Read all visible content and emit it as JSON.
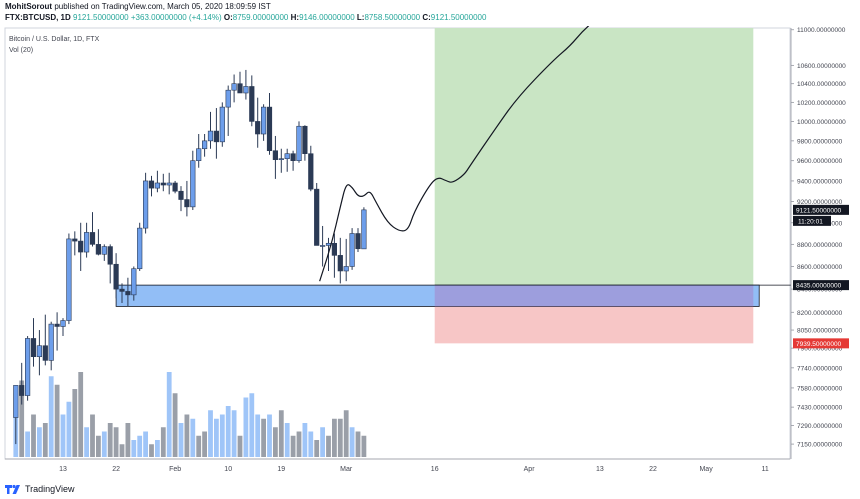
{
  "header": {
    "author": "MohitSorout",
    "published_text": "published on TradingView.com, March 05, 2020 18:09:59 IST",
    "symbol": "FTX:BTCUSD, 1D",
    "price": "9121.50000000",
    "change": "+363.00000000 (+4.14%)",
    "open_label": "O:",
    "open": "8759.00000000",
    "high_label": "H:",
    "high": "9146.00000000",
    "low_label": "L:",
    "low": "8758.50000000",
    "close_label": "C:",
    "close": "9121.50000000"
  },
  "legend": {
    "series_name": "Bitcoin / U.S. Dollar, 1D, FTX",
    "indicator": "Vol (20)"
  },
  "footer": {
    "brand": "TradingView"
  },
  "colors": {
    "up": "#6d9eeb",
    "down": "#2b3a55",
    "vol_up": "#9fc5f8",
    "vol_down": "#9a9fa8",
    "target_zone": "#c9e5c4",
    "stop_zone": "#f7c6c6",
    "support_zone": "#7fb3f5",
    "price_tag": "#131722",
    "stop_tag": "#e53935"
  },
  "chart_data": {
    "type": "candlestick",
    "symbol": "FTX:BTCUSD",
    "timeframe": "1D",
    "y_axis": {
      "scale": "log",
      "range": [
        7040,
        11020
      ],
      "tick_labels": [
        "11000.00000000",
        "10600.00000000",
        "10400.00000000",
        "10200.00000000",
        "10000.00000000",
        "9800.00000000",
        "9600.00000000",
        "9400.00000000",
        "9200.00000000",
        "9000.00000000",
        "8800.00000000",
        "8600.00000000",
        "8400.00000000",
        "8200.00000000",
        "8050.00000000",
        "7900.00000000",
        "7740.00000000",
        "7580.00000000",
        "7430.00000000",
        "7290.00000000",
        "7150.00000000"
      ],
      "tick_values": [
        11000,
        10600,
        10400,
        10200,
        10000,
        9800,
        9600,
        9400,
        9200,
        9000,
        8800,
        8600,
        8400,
        8200,
        8050,
        7900,
        7740,
        7580,
        7430,
        7290,
        7150
      ]
    },
    "x_axis": {
      "tick_labels": [
        "13",
        "22",
        "Feb",
        "10",
        "19",
        "Mar",
        "16",
        "Apr",
        "13",
        "22",
        "May",
        "11"
      ],
      "tick_days": [
        13,
        22,
        32,
        41,
        50,
        61,
        76,
        92,
        104,
        113,
        122,
        132
      ]
    },
    "candles": [
      {
        "d": 5,
        "o": 7350,
        "h": 7600,
        "l": 7150,
        "c": 7600
      },
      {
        "d": 6,
        "o": 7600,
        "h": 7780,
        "l": 7450,
        "c": 7520
      },
      {
        "d": 7,
        "o": 7520,
        "h": 8000,
        "l": 7480,
        "c": 7980
      },
      {
        "d": 8,
        "o": 7980,
        "h": 8150,
        "l": 7750,
        "c": 7830
      },
      {
        "d": 9,
        "o": 7830,
        "h": 8050,
        "l": 7680,
        "c": 7920
      },
      {
        "d": 10,
        "o": 7920,
        "h": 8180,
        "l": 7760,
        "c": 7800
      },
      {
        "d": 11,
        "o": 7800,
        "h": 8120,
        "l": 7720,
        "c": 8100
      },
      {
        "d": 12,
        "o": 8100,
        "h": 8200,
        "l": 7880,
        "c": 8080
      },
      {
        "d": 13,
        "o": 8080,
        "h": 8150,
        "l": 8000,
        "c": 8130
      },
      {
        "d": 14,
        "o": 8130,
        "h": 8900,
        "l": 8100,
        "c": 8850
      },
      {
        "d": 15,
        "o": 8850,
        "h": 8920,
        "l": 8700,
        "c": 8830
      },
      {
        "d": 16,
        "o": 8830,
        "h": 9000,
        "l": 8560,
        "c": 8730
      },
      {
        "d": 17,
        "o": 8730,
        "h": 9000,
        "l": 8680,
        "c": 8910
      },
      {
        "d": 18,
        "o": 8910,
        "h": 9100,
        "l": 8780,
        "c": 8800
      },
      {
        "d": 19,
        "o": 8800,
        "h": 8940,
        "l": 8700,
        "c": 8710
      },
      {
        "d": 20,
        "o": 8710,
        "h": 8800,
        "l": 8650,
        "c": 8780
      },
      {
        "d": 21,
        "o": 8780,
        "h": 8800,
        "l": 8450,
        "c": 8620
      },
      {
        "d": 22,
        "o": 8620,
        "h": 8720,
        "l": 8320,
        "c": 8400
      },
      {
        "d": 23,
        "o": 8400,
        "h": 8450,
        "l": 8280,
        "c": 8380
      },
      {
        "d": 24,
        "o": 8380,
        "h": 8500,
        "l": 8250,
        "c": 8350
      },
      {
        "d": 25,
        "o": 8350,
        "h": 8600,
        "l": 8300,
        "c": 8580
      },
      {
        "d": 26,
        "o": 8580,
        "h": 9000,
        "l": 8560,
        "c": 8950
      },
      {
        "d": 27,
        "o": 8950,
        "h": 9480,
        "l": 8900,
        "c": 9400
      },
      {
        "d": 28,
        "o": 9400,
        "h": 9450,
        "l": 9250,
        "c": 9330
      },
      {
        "d": 29,
        "o": 9330,
        "h": 9500,
        "l": 9290,
        "c": 9380
      },
      {
        "d": 30,
        "o": 9380,
        "h": 9470,
        "l": 9300,
        "c": 9360
      },
      {
        "d": 31,
        "o": 9360,
        "h": 9480,
        "l": 9270,
        "c": 9380
      },
      {
        "d": 32,
        "o": 9380,
        "h": 9400,
        "l": 9280,
        "c": 9300
      },
      {
        "d": 33,
        "o": 9300,
        "h": 9350,
        "l": 9110,
        "c": 9220
      },
      {
        "d": 34,
        "o": 9220,
        "h": 9400,
        "l": 9060,
        "c": 9150
      },
      {
        "d": 35,
        "o": 9150,
        "h": 9700,
        "l": 9120,
        "c": 9600
      },
      {
        "d": 36,
        "o": 9600,
        "h": 9870,
        "l": 9530,
        "c": 9720
      },
      {
        "d": 37,
        "o": 9720,
        "h": 9870,
        "l": 9640,
        "c": 9800
      },
      {
        "d": 38,
        "o": 9800,
        "h": 10100,
        "l": 9720,
        "c": 9900
      },
      {
        "d": 39,
        "o": 9900,
        "h": 10140,
        "l": 9620,
        "c": 9790
      },
      {
        "d": 40,
        "o": 9790,
        "h": 10200,
        "l": 9740,
        "c": 10150
      },
      {
        "d": 41,
        "o": 10150,
        "h": 10380,
        "l": 9850,
        "c": 10330
      },
      {
        "d": 42,
        "o": 10330,
        "h": 10500,
        "l": 10200,
        "c": 10400
      },
      {
        "d": 43,
        "o": 10400,
        "h": 10530,
        "l": 10300,
        "c": 10300
      },
      {
        "d": 44,
        "o": 10300,
        "h": 10550,
        "l": 10230,
        "c": 10370
      },
      {
        "d": 45,
        "o": 10370,
        "h": 10490,
        "l": 9950,
        "c": 10000
      },
      {
        "d": 46,
        "o": 10000,
        "h": 10250,
        "l": 9730,
        "c": 9870
      },
      {
        "d": 47,
        "o": 9870,
        "h": 10180,
        "l": 9800,
        "c": 10150
      },
      {
        "d": 48,
        "o": 10150,
        "h": 10300,
        "l": 9660,
        "c": 9700
      },
      {
        "d": 49,
        "o": 9700,
        "h": 9850,
        "l": 9420,
        "c": 9610
      },
      {
        "d": 50,
        "o": 9610,
        "h": 9720,
        "l": 9480,
        "c": 9620
      },
      {
        "d": 51,
        "o": 9620,
        "h": 9720,
        "l": 9490,
        "c": 9670
      },
      {
        "d": 52,
        "o": 9670,
        "h": 9700,
        "l": 9500,
        "c": 9600
      },
      {
        "d": 53,
        "o": 9600,
        "h": 10000,
        "l": 9580,
        "c": 9950
      },
      {
        "d": 54,
        "o": 9950,
        "h": 9960,
        "l": 9600,
        "c": 9670
      },
      {
        "d": 55,
        "o": 9670,
        "h": 9750,
        "l": 9300,
        "c": 9320
      },
      {
        "d": 56,
        "o": 9320,
        "h": 9380,
        "l": 8800,
        "c": 8790
      },
      {
        "d": 57,
        "o": 8790,
        "h": 8970,
        "l": 8600,
        "c": 8790
      },
      {
        "d": 58,
        "o": 8790,
        "h": 8860,
        "l": 8560,
        "c": 8810
      },
      {
        "d": 59,
        "o": 8810,
        "h": 8900,
        "l": 8500,
        "c": 8700
      },
      {
        "d": 60,
        "o": 8700,
        "h": 8860,
        "l": 8450,
        "c": 8560
      },
      {
        "d": 61,
        "o": 8560,
        "h": 8850,
        "l": 8470,
        "c": 8600
      },
      {
        "d": 62,
        "o": 8600,
        "h": 8950,
        "l": 8570,
        "c": 8900
      },
      {
        "d": 63,
        "o": 8900,
        "h": 8950,
        "l": 8730,
        "c": 8760
      },
      {
        "d": 64,
        "o": 8759,
        "h": 9146,
        "l": 8758.5,
        "c": 9121.5
      }
    ],
    "volume_relative": [
      0.75,
      0.9,
      0.3,
      0.5,
      0.35,
      0.4,
      0.95,
      0.85,
      0.5,
      0.65,
      0.8,
      1.0,
      0.35,
      0.5,
      0.25,
      0.3,
      0.4,
      0.35,
      0.15,
      0.4,
      0.2,
      0.25,
      0.3,
      0.15,
      0.2,
      0.35,
      1.0,
      0.75,
      0.4,
      0.5,
      0.45,
      0.25,
      0.3,
      0.55,
      0.45,
      0.5,
      0.6,
      0.55,
      0.25,
      0.7,
      0.75,
      0.5,
      0.45,
      0.5,
      0.35,
      0.55,
      0.4,
      0.25,
      0.3,
      0.4,
      0.3,
      0.2,
      0.35,
      0.25,
      0.45,
      0.45,
      0.55,
      0.35,
      0.3,
      0.25,
      0.15,
      0.3,
      0.2,
      0.28
    ],
    "volume_up": [
      true,
      false,
      true,
      false,
      true,
      false,
      true,
      false,
      true,
      true,
      false,
      false,
      true,
      false,
      false,
      true,
      false,
      false,
      false,
      false,
      true,
      true,
      true,
      false,
      true,
      false,
      true,
      false,
      true,
      false,
      true,
      false,
      false,
      true,
      true,
      true,
      true,
      true,
      false,
      true,
      true,
      true,
      false,
      true,
      false,
      false,
      true,
      false,
      false,
      true,
      true,
      false,
      true,
      false,
      false,
      false,
      false,
      true,
      false,
      false,
      true,
      false,
      true,
      true
    ],
    "support_zone": [
      8250,
      8435
    ],
    "position": {
      "entry": 8435,
      "stop": 7939.5,
      "target_top": 11020,
      "start_day": 76,
      "end_day": 130
    },
    "projection_path": [
      [
        56.5,
        8470
      ],
      [
        58.5,
        8800
      ],
      [
        60,
        9150
      ],
      [
        61,
        9380
      ],
      [
        62,
        9340
      ],
      [
        63,
        9250
      ],
      [
        64,
        9250
      ],
      [
        65,
        9310
      ],
      [
        66,
        9200
      ],
      [
        68,
        9000
      ],
      [
        70,
        8920
      ],
      [
        71.5,
        8930
      ],
      [
        72.5,
        9100
      ],
      [
        75,
        9350
      ],
      [
        76.5,
        9440
      ],
      [
        78,
        9400
      ],
      [
        79,
        9380
      ],
      [
        81,
        9460
      ],
      [
        82,
        9550
      ],
      [
        86,
        9900
      ],
      [
        90,
        10250
      ],
      [
        96,
        10650
      ],
      [
        99,
        10820
      ],
      [
        101,
        10980
      ],
      [
        103,
        11100
      ]
    ],
    "price_labels": [
      {
        "value": 9121.5,
        "text": "9121.50000000"
      },
      {
        "value": 8435,
        "text": "8435.00000000"
      },
      {
        "value": 7939.5,
        "text": "7939.50000000"
      }
    ],
    "countdown": "11:20:01"
  }
}
